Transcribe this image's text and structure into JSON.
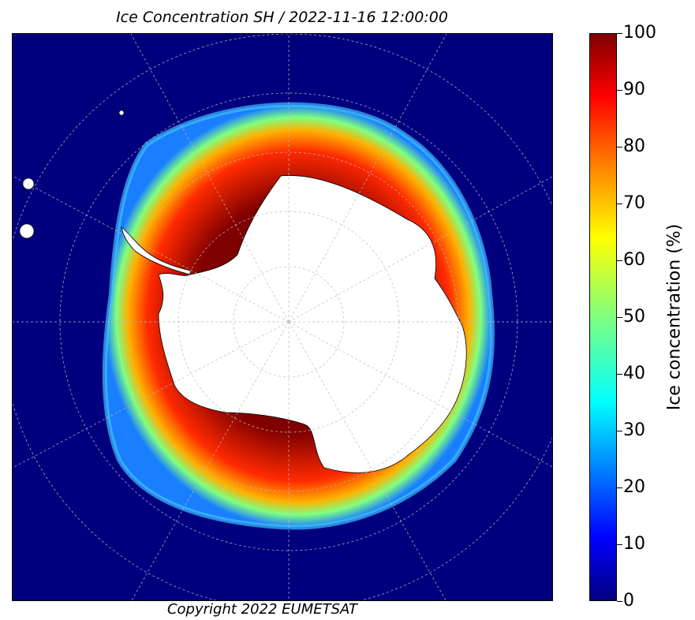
{
  "title": "Ice Concentration SH / 2022-11-16 12:00:00",
  "copyright": "Copyright 2022 EUMETSAT",
  "colorbar": {
    "label": "Ice concentration (%)",
    "ticks": [
      "100",
      "90",
      "80",
      "70",
      "60",
      "50",
      "40",
      "30",
      "20",
      "10",
      "0"
    ],
    "range": [
      0,
      100
    ],
    "colormap": "jet",
    "colors": {
      "ocean": "#00007f",
      "high": "#7f0000",
      "mid": "#ffff00",
      "low": "#00ffff",
      "land": "#ffffff"
    }
  },
  "map": {
    "projection": "south polar stereographic",
    "graticule": true
  }
}
